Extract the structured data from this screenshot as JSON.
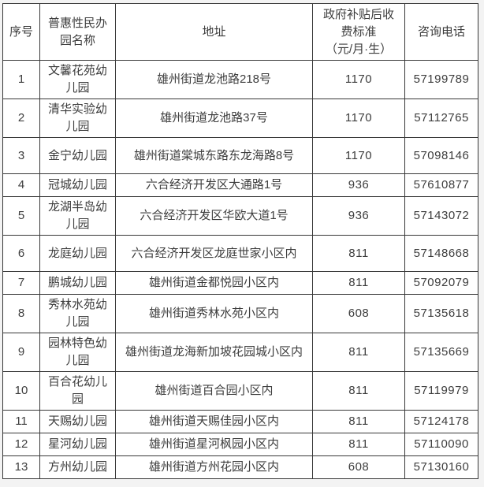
{
  "table": {
    "headers": {
      "no": "序号",
      "name": "普惠性民办\n园名称",
      "address": "地址",
      "fee": "政府补贴后收\n费标准\n（元/月·生）",
      "phone": "咨询电话"
    },
    "rows": [
      {
        "no": "1",
        "name": "文馨花苑幼儿园",
        "address": "雄州街道龙池路218号",
        "fee": "1170",
        "phone": "57199789"
      },
      {
        "no": "2",
        "name": "清华实验幼儿园",
        "address": "雄州街道龙池路37号",
        "fee": "1170",
        "phone": "57112765"
      },
      {
        "no": "3",
        "name": "金宁幼儿园",
        "address": "雄州街道棠城东路东龙海路8号",
        "fee": "1170",
        "phone": "57098146"
      },
      {
        "no": "4",
        "name": "冠城幼儿园",
        "address": "六合经济开发区大通路1号",
        "fee": "936",
        "phone": "57610877"
      },
      {
        "no": "5",
        "name": "龙湖半岛幼儿园",
        "address": "六合经济开发区华欧大道1号",
        "fee": "936",
        "phone": "57143072"
      },
      {
        "no": "6",
        "name": "龙庭幼儿园",
        "address": "六合经济开发区龙庭世家小区内",
        "fee": "811",
        "phone": "57148668"
      },
      {
        "no": "7",
        "name": "鹏城幼儿园",
        "address": "雄州街道金都悦园小区内",
        "fee": "811",
        "phone": "57092079"
      },
      {
        "no": "8",
        "name": "秀林水苑幼儿园",
        "address": "雄州街道秀林水苑小区内",
        "fee": "608",
        "phone": "57135618"
      },
      {
        "no": "9",
        "name": "园林特色幼儿园",
        "address": "雄州街道龙海新加坡花园城小区内",
        "fee": "811",
        "phone": "57135669"
      },
      {
        "no": "10",
        "name": "百合花幼儿园",
        "address": "雄州街道百合园小区内",
        "fee": "811",
        "phone": "57119979"
      },
      {
        "no": "11",
        "name": "天赐幼儿园",
        "address": "雄州街道天赐佳园小区内",
        "fee": "811",
        "phone": "57124178"
      },
      {
        "no": "12",
        "name": "星河幼儿园",
        "address": "雄州街道星河枫园小区内",
        "fee": "811",
        "phone": "57110090"
      },
      {
        "no": "13",
        "name": "方州幼儿园",
        "address": "雄州街道方州花园小区内",
        "fee": "608",
        "phone": "57130160"
      }
    ],
    "colors": {
      "border": "#383838",
      "text": "#3d3d3d",
      "cell_background": "#ffffff",
      "page_background": "#f3f3f3"
    }
  }
}
